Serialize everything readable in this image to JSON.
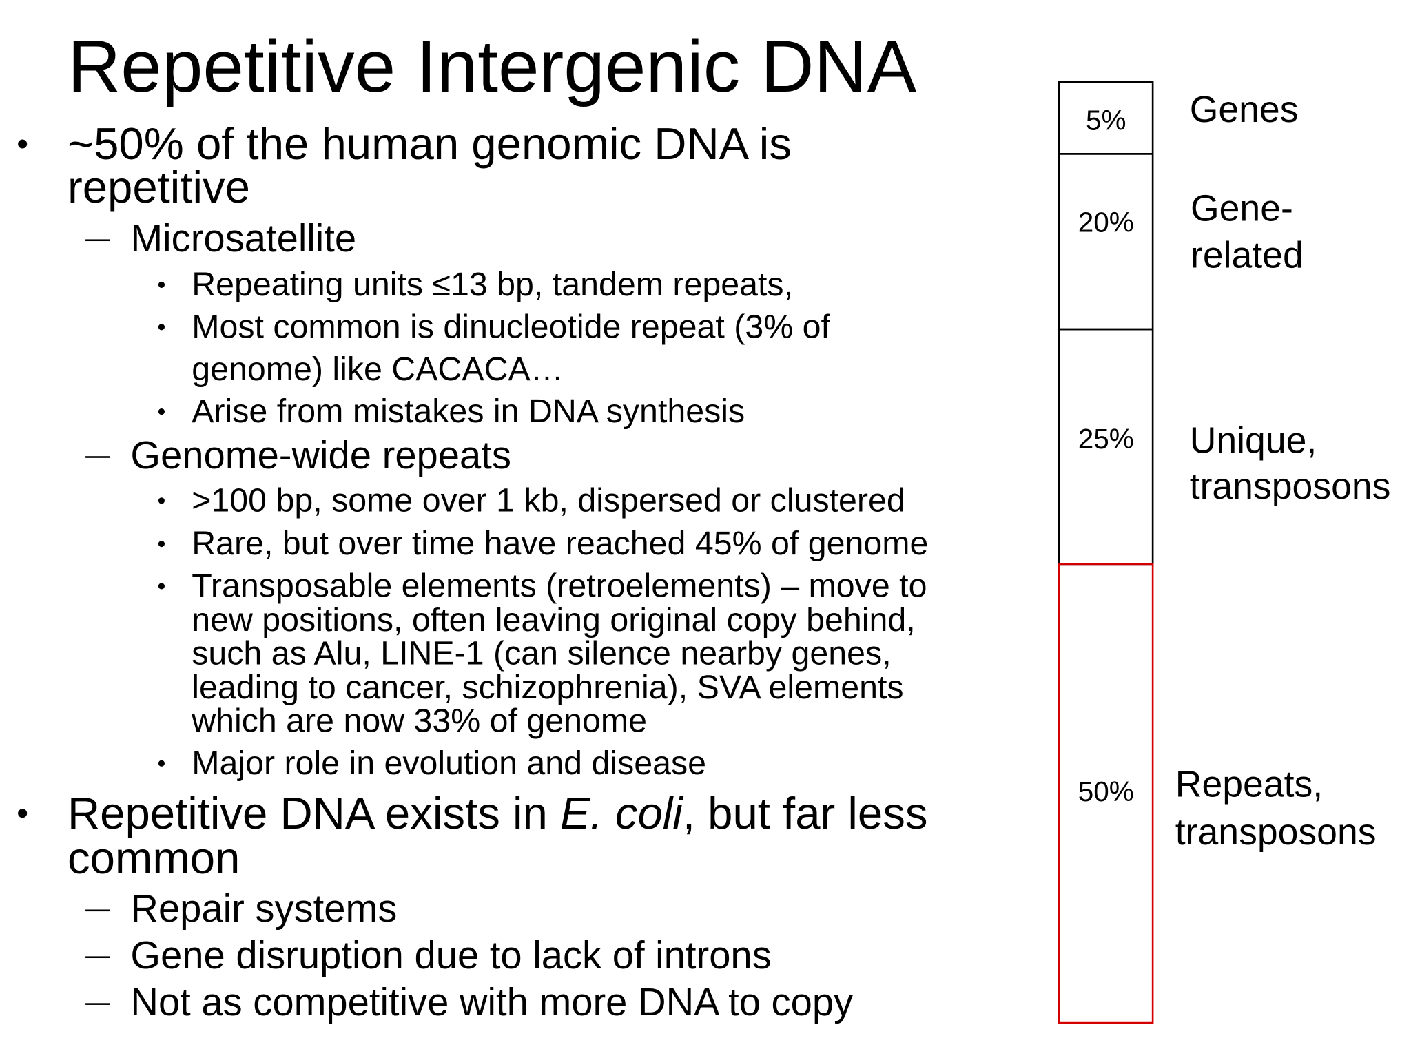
{
  "title": "Repetitive Intergenic DNA",
  "bullets": [
    {
      "lines": [
        "~50% of the human genomic DNA is",
        "repetitive"
      ],
      "children": [
        {
          "lines": [
            "Microsatellite"
          ],
          "children": [
            {
              "lines": [
                "Repeating units ≤13 bp, tandem repeats,"
              ]
            },
            {
              "lines": [
                "Most common is dinucleotide repeat (3% of",
                "genome) like CACACA…"
              ]
            },
            {
              "lines": [
                "Arise from mistakes in DNA synthesis"
              ]
            }
          ]
        },
        {
          "lines": [
            "Genome-wide repeats"
          ],
          "children": [
            {
              "lines": [
                ">100 bp, some over 1 kb, dispersed or clustered"
              ]
            },
            {
              "lines": [
                "Rare, but over time have reached 45% of genome"
              ]
            },
            {
              "lines": [
                "Transposable elements (retroelements) – move to",
                "new positions, often leaving original copy behind,",
                "such as Alu, LINE-1 (can silence nearby genes,",
                "leading to cancer, schizophrenia), SVA elements",
                "which are now 33% of genome"
              ]
            },
            {
              "lines": [
                "Major role in evolution and disease"
              ]
            }
          ]
        }
      ]
    },
    {
      "lines": [
        [
          {
            "text": "Repetitive DNA exists in "
          },
          {
            "text": "E. coli",
            "italic": true
          },
          {
            "text": ", but far less"
          }
        ],
        "common"
      ],
      "children": [
        {
          "lines": [
            "Repair systems"
          ]
        },
        {
          "lines": [
            "Gene disruption due to lack of introns"
          ]
        },
        {
          "lines": [
            "Not as competitive with more DNA to copy"
          ]
        }
      ]
    }
  ],
  "genome_composition": {
    "segments": [
      {
        "percent_label": "5%",
        "name_lines": [
          "Genes"
        ]
      },
      {
        "percent_label": "20%",
        "name_lines": [
          "Gene-",
          "related"
        ]
      },
      {
        "percent_label": "25%",
        "name_lines": [
          "Unique,",
          "transposons"
        ]
      },
      {
        "percent_label": "50%",
        "name_lines": [
          "Repeats,",
          "transposons"
        ],
        "border_color": "#d40000"
      }
    ]
  }
}
